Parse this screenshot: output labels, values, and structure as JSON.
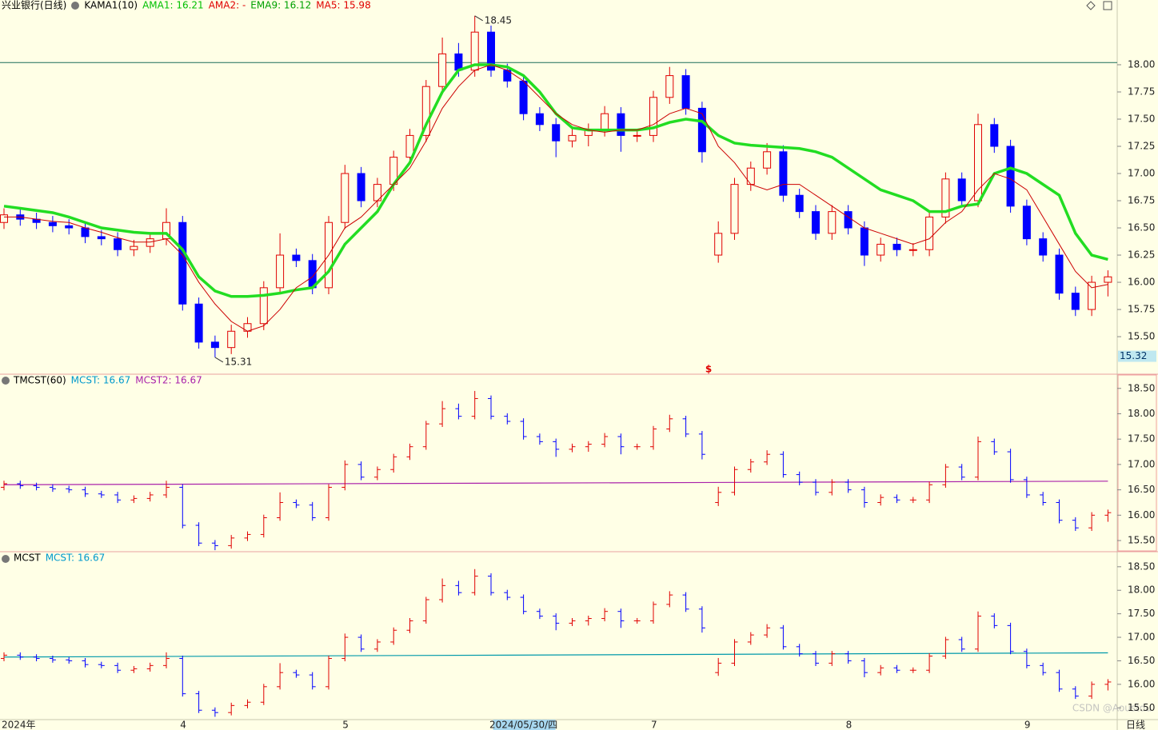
{
  "chart_data": [
    {
      "type": "candlestick",
      "title": "兴业银行(日线)",
      "legend": [
        {
          "text": "KAMA1(10)",
          "color": "#000000"
        },
        {
          "text": "AMA1: 16.21",
          "color": "#00c000"
        },
        {
          "text": "AMA2: -",
          "color": "#e00000"
        },
        {
          "text": "EMA9: 16.12",
          "color": "#00a000"
        },
        {
          "text": "MA5: 15.98",
          "color": "#e00000"
        }
      ],
      "categories": [
        "2024年",
        null,
        null,
        null,
        null,
        null,
        null,
        null,
        null,
        null,
        null,
        "4",
        null,
        null,
        null,
        null,
        null,
        null,
        null,
        null,
        null,
        "5",
        null,
        null,
        null,
        null,
        null,
        null,
        null,
        null,
        null,
        null,
        "2024/05/30/四",
        null,
        null,
        null,
        null,
        null,
        null,
        null,
        "7",
        null,
        null,
        null,
        null,
        null,
        null,
        null,
        null,
        null,
        null,
        null,
        "8",
        null,
        null,
        null,
        null,
        null,
        null,
        null,
        null,
        null,
        null,
        "9",
        null,
        null,
        null,
        null,
        null
      ],
      "candles": [
        [
          16.55,
          16.68,
          16.49,
          16.62
        ],
        [
          16.62,
          16.68,
          16.52,
          16.58
        ],
        [
          16.58,
          16.64,
          16.49,
          16.55
        ],
        [
          16.55,
          16.61,
          16.46,
          16.52
        ],
        [
          16.52,
          16.58,
          16.44,
          16.5
        ],
        [
          16.5,
          16.56,
          16.36,
          16.42
        ],
        [
          16.42,
          16.48,
          16.34,
          16.4
        ],
        [
          16.4,
          16.46,
          16.24,
          16.3
        ],
        [
          16.3,
          16.39,
          16.24,
          16.33
        ],
        [
          16.33,
          16.46,
          16.27,
          16.4
        ],
        [
          16.4,
          16.68,
          16.34,
          16.55
        ],
        [
          16.55,
          16.61,
          15.74,
          15.8
        ],
        [
          15.8,
          15.86,
          15.39,
          15.45
        ],
        [
          15.45,
          15.51,
          15.31,
          15.4
        ],
        [
          15.4,
          15.61,
          15.34,
          15.55
        ],
        [
          15.55,
          15.68,
          15.49,
          15.62
        ],
        [
          15.62,
          16.01,
          15.56,
          15.95
        ],
        [
          15.95,
          16.45,
          15.89,
          16.25
        ],
        [
          16.25,
          16.31,
          16.14,
          16.2
        ],
        [
          16.2,
          16.26,
          15.89,
          15.95
        ],
        [
          15.95,
          16.61,
          15.89,
          16.55
        ],
        [
          16.55,
          17.08,
          16.49,
          17.0
        ],
        [
          17.0,
          17.06,
          16.69,
          16.75
        ],
        [
          16.75,
          16.96,
          16.69,
          16.9
        ],
        [
          16.9,
          17.21,
          16.84,
          17.15
        ],
        [
          17.15,
          17.41,
          17.09,
          17.35
        ],
        [
          17.35,
          17.86,
          17.29,
          17.8
        ],
        [
          17.8,
          18.25,
          17.74,
          18.1
        ],
        [
          18.1,
          18.2,
          17.89,
          17.95
        ],
        [
          17.95,
          18.45,
          17.89,
          18.3
        ],
        [
          18.3,
          18.36,
          17.89,
          17.95
        ],
        [
          17.95,
          18.01,
          17.79,
          17.85
        ],
        [
          17.85,
          17.91,
          17.49,
          17.55
        ],
        [
          17.55,
          17.61,
          17.39,
          17.45
        ],
        [
          17.45,
          17.51,
          17.15,
          17.3
        ],
        [
          17.3,
          17.41,
          17.24,
          17.35
        ],
        [
          17.35,
          17.46,
          17.25,
          17.4
        ],
        [
          17.4,
          17.62,
          17.34,
          17.55
        ],
        [
          17.55,
          17.61,
          17.2,
          17.35
        ],
        [
          17.35,
          17.41,
          17.29,
          17.35
        ],
        [
          17.35,
          17.76,
          17.29,
          17.7
        ],
        [
          17.7,
          17.98,
          17.64,
          17.9
        ],
        [
          17.9,
          17.96,
          17.54,
          17.6
        ],
        [
          17.6,
          17.66,
          17.1,
          17.2
        ],
        [
          16.25,
          16.56,
          16.18,
          16.45
        ],
        [
          16.45,
          16.96,
          16.39,
          16.9
        ],
        [
          16.9,
          17.11,
          16.84,
          17.05
        ],
        [
          17.05,
          17.28,
          16.99,
          17.2
        ],
        [
          17.2,
          17.26,
          16.74,
          16.8
        ],
        [
          16.8,
          16.86,
          16.59,
          16.65
        ],
        [
          16.65,
          16.71,
          16.39,
          16.45
        ],
        [
          16.45,
          16.71,
          16.39,
          16.65
        ],
        [
          16.65,
          16.71,
          16.44,
          16.5
        ],
        [
          16.5,
          16.56,
          16.15,
          16.25
        ],
        [
          16.25,
          16.41,
          16.19,
          16.35
        ],
        [
          16.35,
          16.41,
          16.24,
          16.3
        ],
        [
          16.3,
          16.36,
          16.24,
          16.3
        ],
        [
          16.3,
          16.66,
          16.24,
          16.6
        ],
        [
          16.6,
          17.01,
          16.54,
          16.95
        ],
        [
          16.95,
          17.01,
          16.69,
          16.75
        ],
        [
          16.75,
          17.55,
          16.69,
          17.45
        ],
        [
          17.45,
          17.51,
          17.19,
          17.25
        ],
        [
          17.25,
          17.31,
          16.64,
          16.7
        ],
        [
          16.7,
          16.76,
          16.34,
          16.4
        ],
        [
          16.4,
          16.46,
          16.19,
          16.25
        ],
        [
          16.25,
          16.31,
          15.84,
          15.9
        ],
        [
          15.9,
          15.96,
          15.69,
          15.75
        ],
        [
          15.75,
          16.06,
          15.69,
          16.0
        ],
        [
          16.0,
          16.11,
          15.87,
          16.05
        ]
      ],
      "up_color": "#e00000",
      "down_color": "#0000ff",
      "series": [
        {
          "name": "AMA1",
          "color": "#22dd22",
          "width": 3.5,
          "values": [
            16.7,
            16.68,
            16.66,
            16.64,
            16.6,
            16.55,
            16.5,
            16.48,
            16.46,
            16.45,
            16.45,
            16.3,
            16.05,
            15.92,
            15.87,
            15.87,
            15.88,
            15.9,
            15.93,
            15.95,
            16.1,
            16.35,
            16.5,
            16.65,
            16.9,
            17.1,
            17.45,
            17.75,
            17.95,
            18.0,
            18.0,
            17.98,
            17.9,
            17.75,
            17.55,
            17.42,
            17.4,
            17.4,
            17.4,
            17.4,
            17.42,
            17.47,
            17.5,
            17.48,
            17.35,
            17.28,
            17.26,
            17.25,
            17.24,
            17.23,
            17.2,
            17.15,
            17.05,
            16.95,
            16.85,
            16.8,
            16.75,
            16.65,
            16.65,
            16.7,
            16.72,
            17.0,
            17.05,
            17.0,
            16.9,
            16.8,
            16.45,
            16.25,
            16.21
          ]
        },
        {
          "name": "MA5",
          "color": "#cc0000",
          "width": 1,
          "values": [
            16.6,
            16.6,
            16.58,
            16.56,
            16.55,
            16.5,
            16.46,
            16.41,
            16.37,
            16.37,
            16.4,
            16.25,
            16.0,
            15.8,
            15.64,
            15.55,
            15.6,
            15.75,
            15.95,
            16.05,
            16.25,
            16.5,
            16.6,
            16.75,
            16.9,
            17.05,
            17.3,
            17.6,
            17.8,
            17.95,
            18.0,
            17.95,
            17.85,
            17.7,
            17.55,
            17.45,
            17.4,
            17.38,
            17.4,
            17.4,
            17.45,
            17.55,
            17.6,
            17.55,
            17.25,
            17.1,
            16.9,
            16.85,
            16.9,
            16.9,
            16.8,
            16.7,
            16.6,
            16.5,
            16.45,
            16.4,
            16.35,
            16.4,
            16.55,
            16.65,
            16.85,
            17.0,
            16.95,
            16.85,
            16.6,
            16.35,
            16.1,
            15.95,
            15.98
          ]
        }
      ],
      "hline": 18.02,
      "hline_color": "#1a6b5a",
      "price_tag": 15.32,
      "marker": "$",
      "period_label": "日线",
      "ylim": [
        15.155,
        18.485
      ],
      "yticks": [
        {
          "value": 15.5,
          "label": "15.50"
        },
        {
          "value": 15.75,
          "label": "15.75"
        },
        {
          "value": 16,
          "label": "16.00"
        },
        {
          "value": 16.25,
          "label": "16.25"
        },
        {
          "value": 16.5,
          "label": "16.50"
        },
        {
          "value": 16.75,
          "label": "16.75"
        },
        {
          "value": 17,
          "label": "17.00"
        },
        {
          "value": 17.25,
          "label": "17.25"
        },
        {
          "value": 17.5,
          "label": "17.50"
        },
        {
          "value": 17.75,
          "label": "17.75"
        },
        {
          "value": 18,
          "label": "18.00"
        }
      ],
      "watermark": "CSDN @Aoustdu"
    },
    {
      "type": "ohlc",
      "title": "TMCST(60)",
      "legend": [
        {
          "text": "MCST: 16.67",
          "color": "#0099cc"
        },
        {
          "text": "MCST2: 16.67",
          "color": "#aa22aa"
        }
      ],
      "series": [
        {
          "name": "MCST2",
          "color": "#aa22aa",
          "x": [
            0,
            68
          ],
          "values": [
            16.6,
            16.67
          ]
        }
      ],
      "ylim": [
        15.28,
        18.78
      ],
      "yticks": [
        {
          "value": 15.5,
          "label": "15.50"
        },
        {
          "value": 16,
          "label": "16.00"
        },
        {
          "value": 16.5,
          "label": "16.50"
        },
        {
          "value": 17,
          "label": "17.00"
        },
        {
          "value": 17.5,
          "label": "17.50"
        },
        {
          "value": 18,
          "label": "18.00"
        },
        {
          "value": 18.5,
          "label": "18.50"
        }
      ]
    },
    {
      "type": "ohlc",
      "title": "MCST",
      "legend": [
        {
          "text": "MCST: 16.67",
          "color": "#0099cc"
        }
      ],
      "series": [
        {
          "name": "MCST",
          "color": "#0099aa",
          "x": [
            0,
            68
          ],
          "values": [
            16.58,
            16.67
          ]
        }
      ],
      "ylim": [
        15.25,
        18.82
      ],
      "yticks": [
        {
          "value": 15.5,
          "label": "15.50"
        },
        {
          "value": 16,
          "label": "16.00"
        },
        {
          "value": 16.5,
          "label": "16.50"
        },
        {
          "value": 17,
          "label": "17.00"
        },
        {
          "value": 17.5,
          "label": "17.50"
        },
        {
          "value": 18,
          "label": "18.00"
        },
        {
          "value": 18.5,
          "label": "18.50"
        }
      ]
    }
  ]
}
